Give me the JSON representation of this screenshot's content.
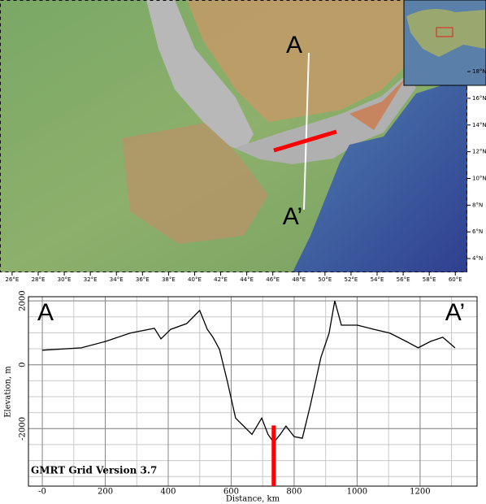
{
  "map": {
    "lonlim": [
      25.07,
      60.92
    ],
    "latlim": [
      2.97,
      23.36
    ],
    "lon_ticks": [
      {
        "value": 26,
        "label": "26°E"
      },
      {
        "value": 28,
        "label": "28°E"
      },
      {
        "value": 30,
        "label": "30°E"
      },
      {
        "value": 32,
        "label": "32°E"
      },
      {
        "value": 34,
        "label": "34°E"
      },
      {
        "value": 36,
        "label": "36°E"
      },
      {
        "value": 38,
        "label": "38°E"
      },
      {
        "value": 40,
        "label": "40°E"
      },
      {
        "value": 42,
        "label": "42°E"
      },
      {
        "value": 44,
        "label": "44°E"
      },
      {
        "value": 46,
        "label": "46°E"
      },
      {
        "value": 48,
        "label": "48°E"
      },
      {
        "value": 50,
        "label": "50°E"
      },
      {
        "value": 52,
        "label": "52°E"
      },
      {
        "value": 54,
        "label": "54°E"
      },
      {
        "value": 56,
        "label": "56°E"
      },
      {
        "value": 58,
        "label": "58°E"
      },
      {
        "value": 60,
        "label": "60°E"
      }
    ],
    "lat_ticks": [
      {
        "value": 18,
        "label": "18°N"
      },
      {
        "value": 16,
        "label": "16°N"
      },
      {
        "value": 14,
        "label": "14°N"
      },
      {
        "value": 12,
        "label": "12°N"
      },
      {
        "value": 10,
        "label": "10°N"
      },
      {
        "value": 8,
        "label": "8°N"
      },
      {
        "value": 6,
        "label": "6°N"
      },
      {
        "value": 4,
        "label": "4°N"
      }
    ],
    "start_label": "A",
    "end_label": "A’"
  },
  "profile": {
    "type": "line",
    "start_label": "A",
    "end_label": "A’",
    "annotation": "GMRT Grid Version 3.7",
    "xlabel": "Distance, km",
    "ylabel": "Elevation, m",
    "x": [
      0,
      124,
      201,
      279,
      356,
      377,
      408,
      459,
      500,
      524,
      542,
      563,
      588,
      614,
      666,
      697,
      717,
      735,
      756,
      774,
      800,
      826,
      851,
      885,
      911,
      929,
      950,
      1001,
      1053,
      1104,
      1156,
      1194,
      1233,
      1272,
      1311
    ],
    "values": [
      455,
      530,
      730,
      990,
      1140,
      810,
      1110,
      1290,
      1700,
      1110,
      860,
      480,
      -530,
      -1670,
      -2180,
      -1670,
      -2180,
      -2430,
      -2180,
      -1920,
      -2250,
      -2300,
      -1290,
      230,
      990,
      2000,
      1240,
      1240,
      1110,
      990,
      730,
      530,
      730,
      860,
      530
    ],
    "color": "#000000",
    "xlim": [
      -44,
      1381
    ],
    "ylim": [
      -3800,
      2130
    ],
    "xticks": [
      {
        "value": 0,
        "label": "-0"
      },
      200,
      400,
      600,
      800,
      1000,
      1200
    ],
    "yticks": [
      -2000,
      0,
      2000
    ],
    "xgrid": [
      0,
      100,
      200,
      300,
      400,
      500,
      600,
      700,
      800,
      900,
      1000,
      1100,
      1200,
      1300
    ],
    "ygrid": [
      -3500,
      -3000,
      -2500,
      -2000,
      -1500,
      -1000,
      -500,
      0,
      500,
      1000,
      1500,
      2000
    ],
    "marker": {
      "x": 735,
      "top": -1900,
      "color": "#ff0000"
    }
  }
}
